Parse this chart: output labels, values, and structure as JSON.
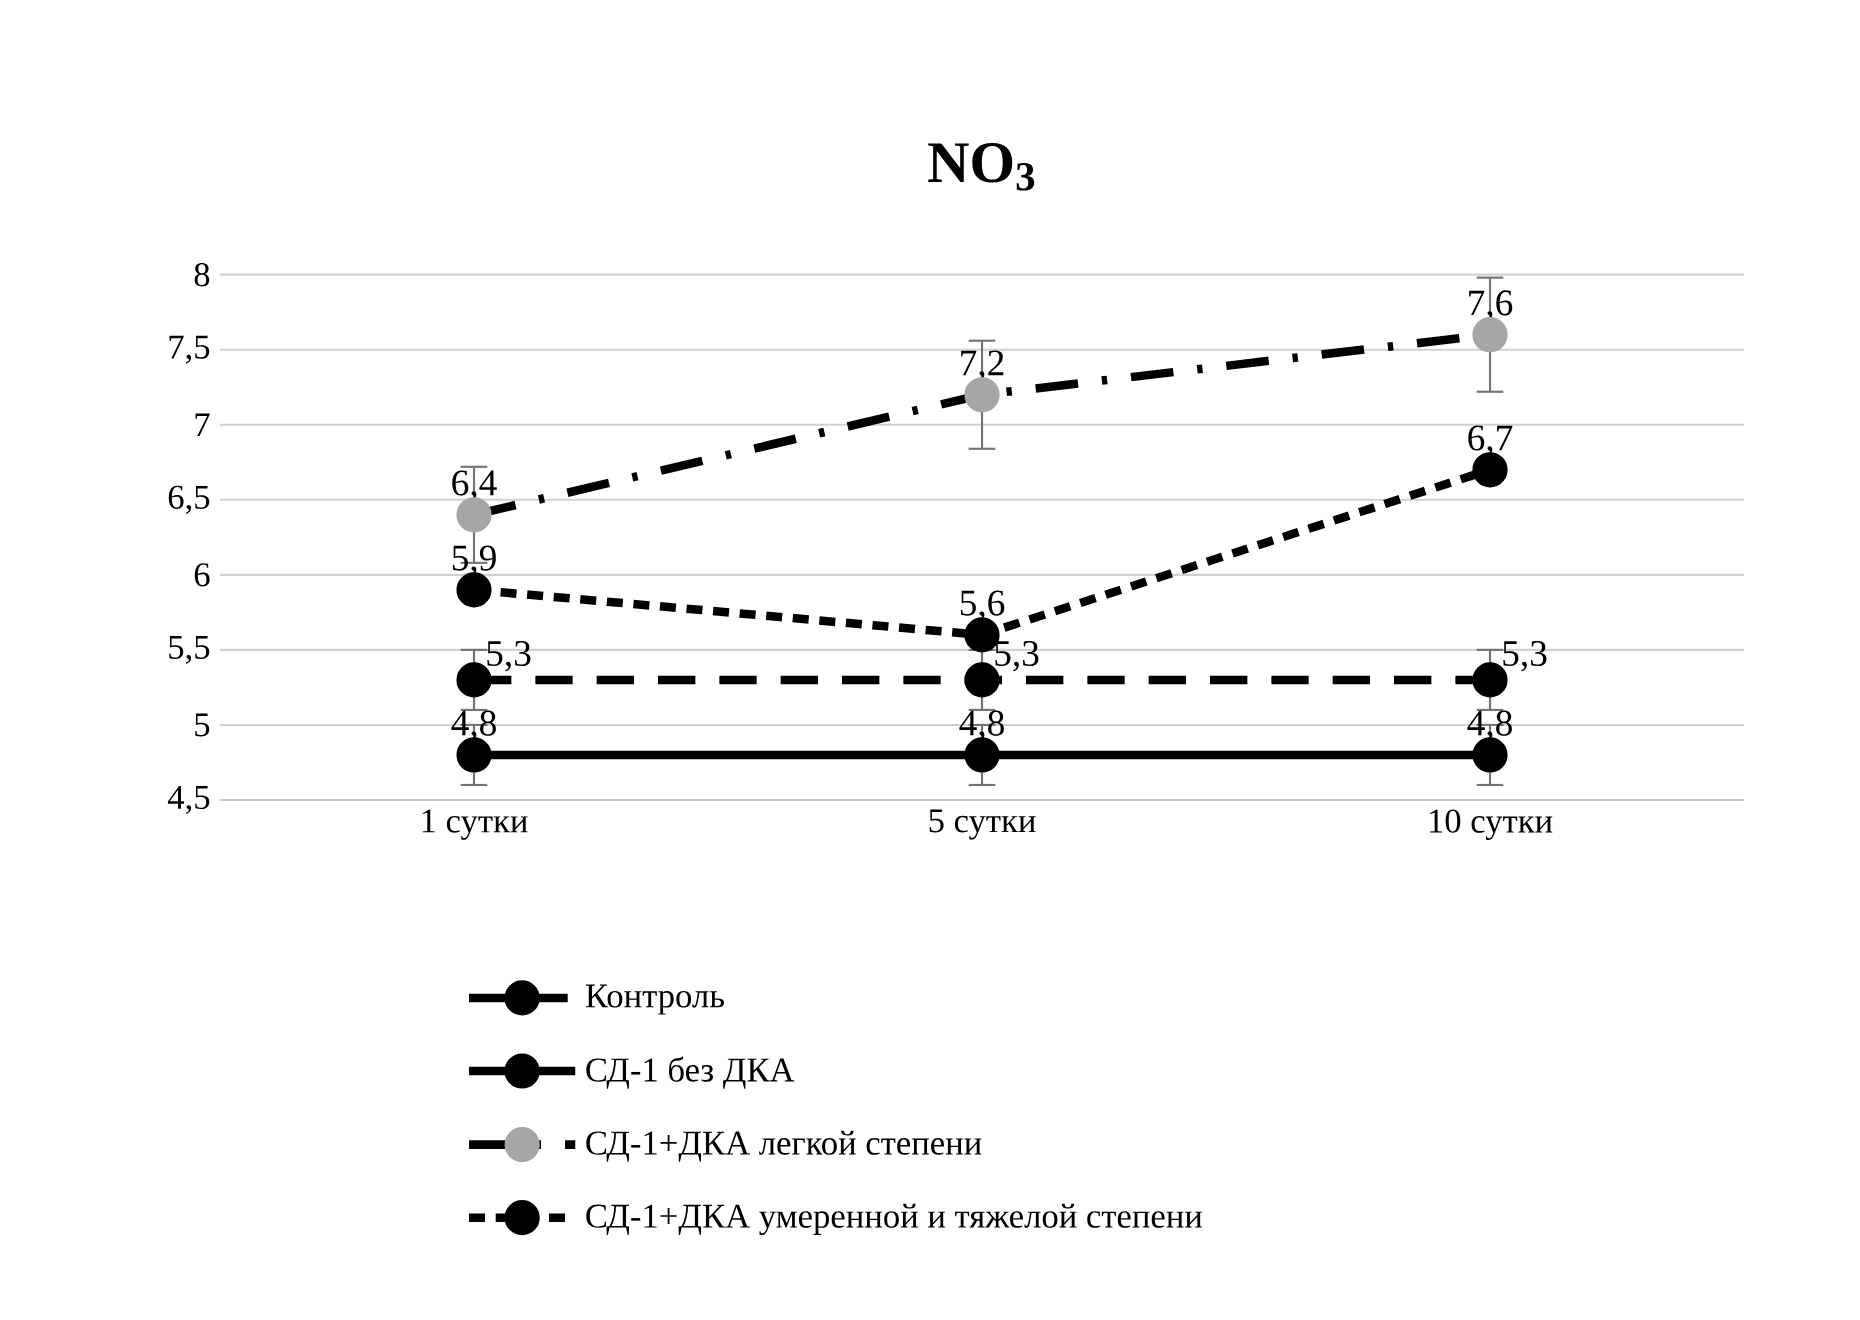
{
  "chart_data": {
    "type": "line",
    "title": "NO$_{3}$",
    "categories": [
      "1 сутки",
      "5 сутки",
      "10 сутки"
    ],
    "series": [
      {
        "name": "Контроль",
        "color": "#000000",
        "values": [
          5.3,
          5.3,
          5.3
        ],
        "errors": [
          0.2,
          0.2,
          0.2
        ],
        "line_style": "dashed",
        "value_labels": [
          "5,3",
          "5,3",
          "5,3"
        ]
      },
      {
        "name": "СД-1 без ДКА",
        "color": "#000000",
        "values": [
          4.8,
          4.8,
          4.8
        ],
        "errors": [
          0.2,
          0.2,
          0.2
        ],
        "line_style": "solid",
        "value_labels": [
          "4,8",
          "4,8",
          "4,8"
        ]
      },
      {
        "name": "СД-1+ДКА легкой степени",
        "color": "#a6a6a6",
        "values": [
          6.4,
          7.2,
          7.6
        ],
        "errors": [
          0.32,
          0.36,
          0.38
        ],
        "line_style": "dashdot",
        "value_labels": [
          "6,4",
          "7,2",
          "7,6"
        ]
      },
      {
        "name": "СД-1+ДКА умеренной и тяжелой степени",
        "color": "#000000",
        "values": [
          5.9,
          5.6,
          6.7
        ],
        "line_style": "dotted",
        "value_labels": [
          "5,9",
          "5,6",
          "6,7"
        ]
      }
    ],
    "ylim": [
      4.5,
      8
    ],
    "yticks": [
      {
        "value": 4.5,
        "label": "4,5"
      },
      5,
      {
        "value": 5.5,
        "label": "5,5"
      },
      6,
      {
        "value": 6.5,
        "label": "6,5"
      },
      7,
      {
        "value": 7.5,
        "label": "7,5"
      },
      8
    ],
    "grid": "y",
    "legend": "bottom",
    "marker": "circle"
  }
}
